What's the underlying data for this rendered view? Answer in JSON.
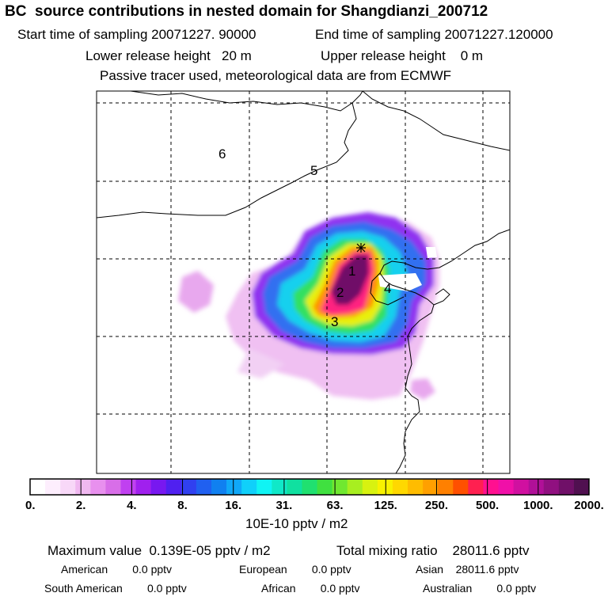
{
  "header": {
    "title": "BC  source contributions in nested domain for Shangdianzi_200712",
    "start_label": "Start time of sampling 20071227. 90000",
    "end_label": "End time of sampling 20071227.120000",
    "lower_label": "Lower release height   20 m",
    "upper_label": "Upper release height    0 m",
    "tracer_label": "Passive tracer used, meteorological data are from ECMWF"
  },
  "map": {
    "region_labels": [
      "6",
      "5",
      "1",
      "2",
      "4",
      "3"
    ]
  },
  "colorbar": {
    "tick_labels": [
      "0.",
      "2.",
      "4.",
      "8.",
      "16.",
      "31.",
      "63.",
      "125.",
      "250.",
      "500.",
      "1000.",
      "2000."
    ],
    "units": "10E-10 pptv / m2",
    "colors": [
      "#ffffff",
      "#fdeefd",
      "#f8d8f8",
      "#f0b8f0",
      "#e890ee",
      "#d86ee8",
      "#c040f0",
      "#a020ee",
      "#7818f0",
      "#5020f0",
      "#3040f0",
      "#2060f0",
      "#1080f0",
      "#10a8f8",
      "#10d0fa",
      "#10f4f4",
      "#10e8c8",
      "#10e0a0",
      "#20e070",
      "#40e040",
      "#70e830",
      "#a8ee20",
      "#d8f210",
      "#f8f200",
      "#ffd800",
      "#ffbc00",
      "#ffa000",
      "#ff8000",
      "#ff5000",
      "#ff2050",
      "#ff1090",
      "#f010a8",
      "#d010a0",
      "#b01098",
      "#901080",
      "#701068",
      "#501050"
    ]
  },
  "stats": {
    "max_label": "Maximum value  0.139E-05 pptv / m2",
    "total_label": "Total mixing ratio    28011.6 pptv",
    "american": "American        0.0 pptv",
    "european": "European        0.0 pptv",
    "asian": "Asian    28011.6 pptv",
    "south_american": "South American        0.0 pptv",
    "african": "African        0.0 pptv",
    "australian": "Australian        0.0 pptv"
  }
}
